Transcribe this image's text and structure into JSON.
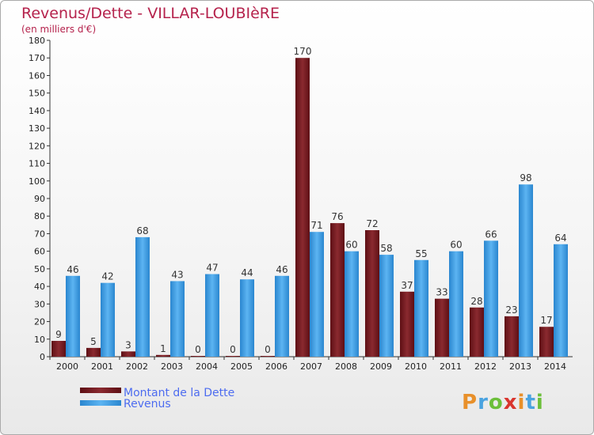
{
  "chart_data": {
    "type": "bar",
    "title": "Revenus/Dette - VILLAR-LOUBIèRE",
    "subtitle": "(en milliers d'€)",
    "categories": [
      "2000",
      "2001",
      "2002",
      "2003",
      "2004",
      "2005",
      "2006",
      "2007",
      "2008",
      "2009",
      "2010",
      "2011",
      "2012",
      "2013",
      "2014"
    ],
    "series": [
      {
        "name": "Montant de la Dette",
        "color": "#7a1e24",
        "values": [
          9,
          5,
          3,
          1,
          0,
          0,
          0,
          170,
          76,
          72,
          37,
          33,
          28,
          23,
          17
        ]
      },
      {
        "name": "Revenus",
        "color": "#3f9fe4",
        "values": [
          46,
          42,
          68,
          43,
          47,
          44,
          46,
          71,
          60,
          58,
          55,
          60,
          66,
          98,
          64
        ]
      }
    ],
    "ylim": [
      0,
      180
    ],
    "ytick_step": 10,
    "grid": false,
    "legend": "bottom-left"
  },
  "branding": {
    "logo_text": "Proxiti"
  }
}
